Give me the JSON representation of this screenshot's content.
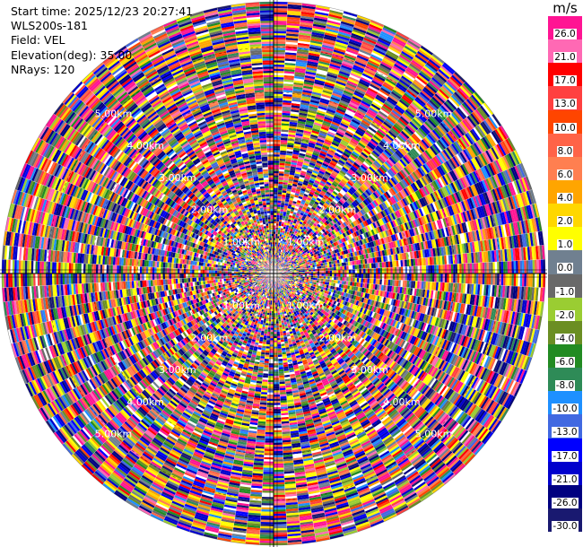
{
  "info": {
    "start_time": "Start time: 2025/12/23 20:27:41",
    "station": "WLS200s-181",
    "field": "Field: VEL",
    "elevation": "Elevation(deg): 35.00",
    "nrays": "NRays: 120"
  },
  "colorbar": {
    "unit": "m/s",
    "levels": [
      {
        "label": "26.0",
        "color": "#ff1493"
      },
      {
        "label": "21.0",
        "color": "#ff69b4"
      },
      {
        "label": "17.0",
        "color": "#ff0000"
      },
      {
        "label": "13.0",
        "color": "#ff4040"
      },
      {
        "label": "10.0",
        "color": "#ff4500"
      },
      {
        "label": "8.0",
        "color": "#ff6347"
      },
      {
        "label": "6.0",
        "color": "#ff7f50"
      },
      {
        "label": "4.0",
        "color": "#ffa500"
      },
      {
        "label": "2.0",
        "color": "#ffd700"
      },
      {
        "label": "1.0",
        "color": "#ffff00"
      },
      {
        "label": "0.0",
        "color": "#708090"
      },
      {
        "label": "-1.0",
        "color": "#696969"
      },
      {
        "label": "-2.0",
        "color": "#9acd32"
      },
      {
        "label": "-4.0",
        "color": "#6b8e23"
      },
      {
        "label": "-6.0",
        "color": "#228b22"
      },
      {
        "label": "-8.0",
        "color": "#2e8b57"
      },
      {
        "label": "-10.0",
        "color": "#1e90ff"
      },
      {
        "label": "-13.0",
        "color": "#4169e1"
      },
      {
        "label": "-17.0",
        "color": "#0000ff"
      },
      {
        "label": "-21.0",
        "color": "#0000cd"
      },
      {
        "label": "-26.0",
        "color": "#000080"
      },
      {
        "label": "-30.0",
        "color": "#191970"
      }
    ]
  },
  "chart_data": {
    "type": "heatmap",
    "projection": "polar (PPI)",
    "field": "VEL",
    "nrays": 120,
    "range_km": [
      0,
      6
    ],
    "range_ring_labels": [
      "1.00km",
      "2.00km",
      "3.00km",
      "4.00km",
      "5.00km"
    ],
    "colorbar_unit": "m/s",
    "colorbar_ticks": [
      26.0,
      21.0,
      17.0,
      13.0,
      10.0,
      8.0,
      6.0,
      4.0,
      2.0,
      1.0,
      0.0,
      -1.0,
      -2.0,
      -4.0,
      -6.0,
      -8.0,
      -10.0,
      -13.0,
      -17.0,
      -21.0,
      -26.0,
      -30.0
    ]
  }
}
